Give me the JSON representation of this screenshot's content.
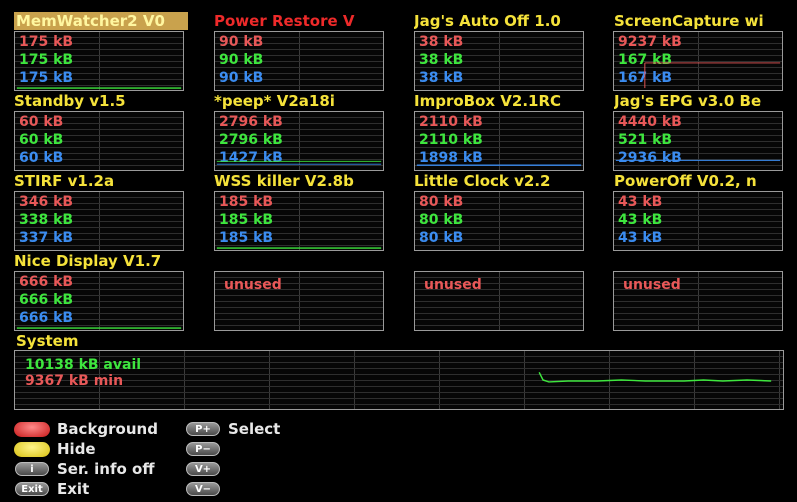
{
  "plugins": [
    {
      "name": "MemWatcher2 V0",
      "v1": "175 kB",
      "v2": "175 kB",
      "v3": "175 kB"
    },
    {
      "name": "Power Restore V",
      "v1": "90 kB",
      "v2": "90 kB",
      "v3": "90 kB"
    },
    {
      "name": "Jag's Auto Off 1.0",
      "v1": "38 kB",
      "v2": "38 kB",
      "v3": "38 kB"
    },
    {
      "name": "ScreenCapture wi",
      "v1": "9237 kB",
      "v2": "167 kB",
      "v3": "167 kB"
    },
    {
      "name": "Standby v1.5",
      "v1": "60 kB",
      "v2": "60 kB",
      "v3": "60 kB"
    },
    {
      "name": "*peep* V2a18i",
      "v1": "2796 kB",
      "v2": "2796 kB",
      "v3": "1427 kB"
    },
    {
      "name": "ImproBox V2.1RC",
      "v1": "2110 kB",
      "v2": "2110 kB",
      "v3": "1898 kB"
    },
    {
      "name": "Jag's EPG v3.0 Be",
      "v1": "4440 kB",
      "v2": "521 kB",
      "v3": "2936 kB"
    },
    {
      "name": "STIRF v1.2a",
      "v1": "346 kB",
      "v2": "338 kB",
      "v3": "337 kB"
    },
    {
      "name": "WSS killer V2.8b",
      "v1": "185 kB",
      "v2": "185 kB",
      "v3": "185 kB"
    },
    {
      "name": "Little Clock v2.2",
      "v1": "80 kB",
      "v2": "80 kB",
      "v3": "80 kB"
    },
    {
      "name": "PowerOff V0.2, n",
      "v1": "43 kB",
      "v2": "43 kB",
      "v3": "43 kB"
    },
    {
      "name": "Nice Display V1.7",
      "v1": "666 kB",
      "v2": "666 kB",
      "v3": "666 kB"
    }
  ],
  "unused_label": "unused",
  "system": {
    "title": "System",
    "avail": "10138 kB avail",
    "min": "9367 kB min"
  },
  "legend": {
    "background": "Background",
    "hide": "Hide",
    "ser_info": "Ser. info off",
    "exit": "Exit",
    "select": "Select",
    "key_info": "i",
    "key_exit": "Exit",
    "key_pplus": "P+",
    "key_pminus": "P−",
    "key_vplus": "V+",
    "key_vminus": "V−"
  },
  "colors": {
    "red": "#e85858",
    "green": "#3ee63e",
    "blue": "#3b8cf0",
    "yellow": "#f5e23a",
    "highlight": "#c9a24d"
  }
}
